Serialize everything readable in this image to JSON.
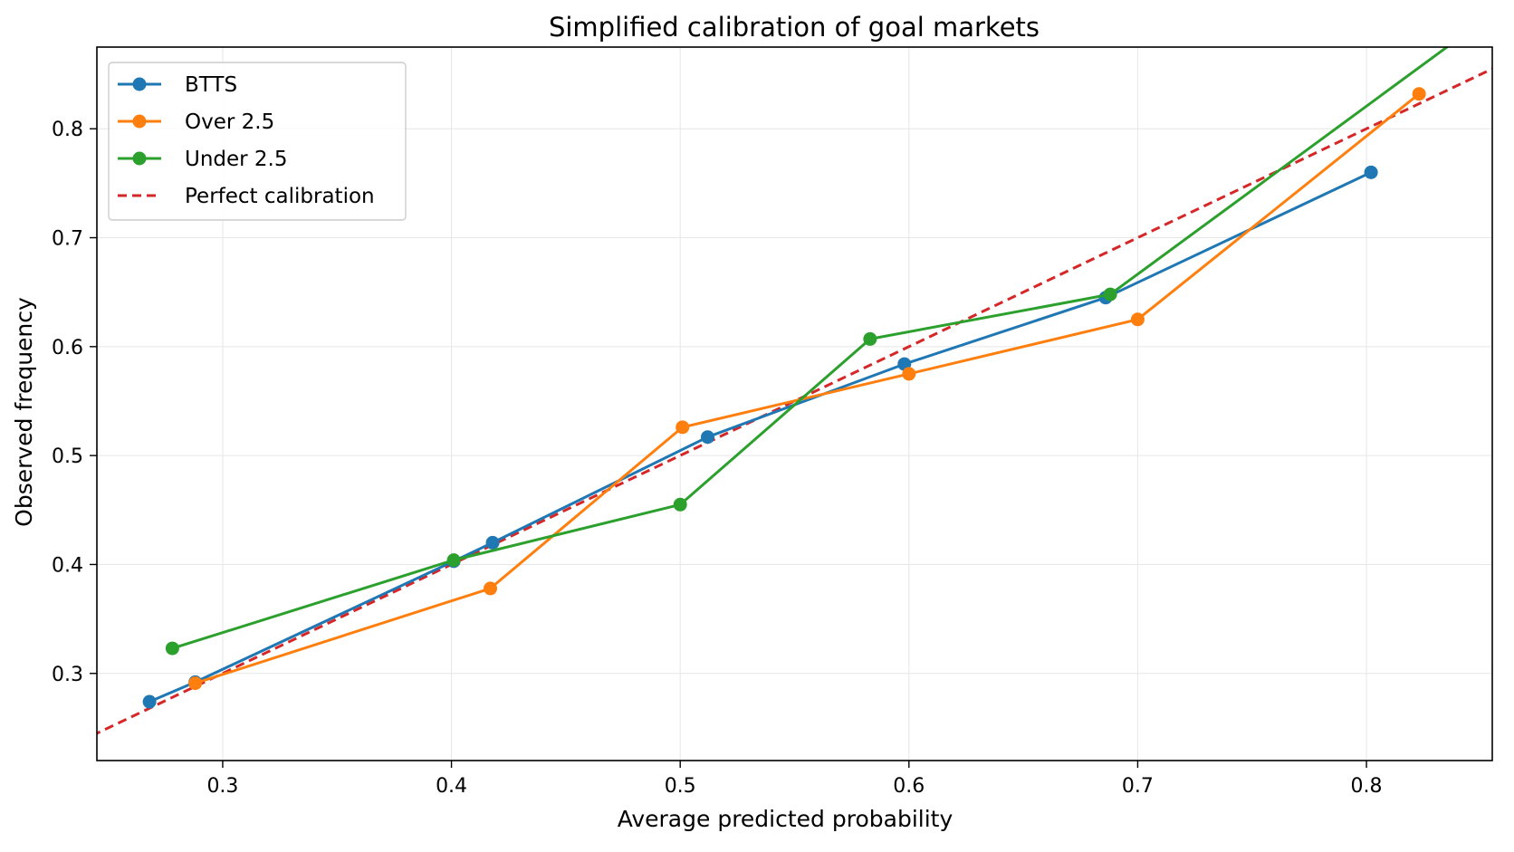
{
  "chart_data": {
    "type": "line",
    "title": "Simplified calibration of goal markets",
    "xlabel": "Average predicted probability",
    "ylabel": "Observed frequency",
    "xlim": [
      0.245,
      0.855
    ],
    "ylim": [
      0.22,
      0.875
    ],
    "xticks": [
      0.3,
      0.4,
      0.5,
      0.6,
      0.7,
      0.8
    ],
    "xtick_labels": [
      "0.3",
      "0.4",
      "0.5",
      "0.6",
      "0.7",
      "0.8"
    ],
    "yticks": [
      0.3,
      0.4,
      0.5,
      0.6,
      0.7,
      0.8
    ],
    "ytick_labels": [
      "0.3",
      "0.4",
      "0.5",
      "0.6",
      "0.7",
      "0.8"
    ],
    "grid": true,
    "legend_position": "top-left",
    "series": [
      {
        "name": "BTTS",
        "color": "#1f77b4",
        "x": [
          0.268,
          0.288,
          0.401,
          0.418,
          0.512,
          0.598,
          0.686,
          0.802
        ],
        "y": [
          0.274,
          0.292,
          0.403,
          0.42,
          0.517,
          0.584,
          0.645,
          0.76
        ]
      },
      {
        "name": "Over 2.5",
        "color": "#ff7f0e",
        "x": [
          0.288,
          0.417,
          0.501,
          0.6,
          0.7,
          0.823
        ],
        "y": [
          0.291,
          0.378,
          0.526,
          0.575,
          0.625,
          0.832
        ]
      },
      {
        "name": "Under 2.5",
        "color": "#2ca02c",
        "x": [
          0.278,
          0.401,
          0.5,
          0.583,
          0.688,
          0.9
        ],
        "y": [
          0.323,
          0.404,
          0.455,
          0.607,
          0.648,
          0.975
        ]
      },
      {
        "name": "Perfect calibration",
        "color": "#d62728",
        "dashed": true,
        "x": [
          0.22,
          0.875
        ],
        "y": [
          0.22,
          0.875
        ]
      }
    ]
  }
}
